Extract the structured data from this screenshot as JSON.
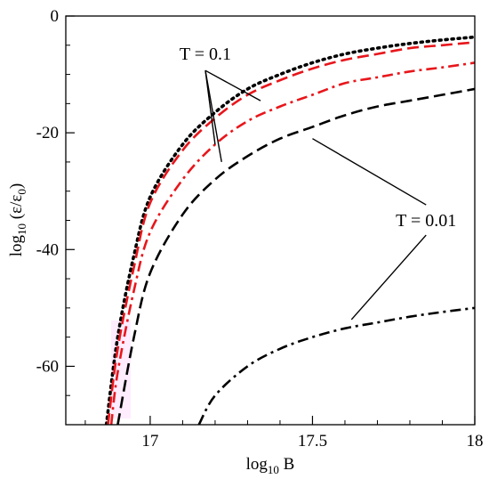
{
  "chart_data": {
    "type": "line",
    "xlabel": "log10 B",
    "ylabel": "log10 (ε/ε0)",
    "xlim": [
      16.74,
      18.0
    ],
    "ylim": [
      -70,
      0
    ],
    "x_ticks": [
      17,
      17.5,
      18
    ],
    "x_tick_labels": [
      "17",
      "17.5",
      "18"
    ],
    "y_ticks": [
      0,
      -20,
      -40,
      -60
    ],
    "y_tick_labels": [
      "0",
      "-20",
      "-40",
      "-60"
    ],
    "grid": false,
    "legend": "none",
    "series": [
      {
        "color": "#000000",
        "style": "dotted",
        "points": [
          [
            16.865,
            -70
          ],
          [
            16.9,
            -55
          ],
          [
            16.95,
            -41
          ],
          [
            17.0,
            -31
          ],
          [
            17.1,
            -22
          ],
          [
            17.2,
            -16.5
          ],
          [
            17.3,
            -12.5
          ],
          [
            17.4,
            -10
          ],
          [
            17.5,
            -8
          ],
          [
            17.6,
            -6.5
          ],
          [
            17.7,
            -5.5
          ],
          [
            17.8,
            -4.7
          ],
          [
            17.9,
            -4.1
          ],
          [
            18.0,
            -3.6
          ]
        ]
      },
      {
        "color": "#e8161b",
        "style": "long-dash",
        "points": [
          [
            16.87,
            -70
          ],
          [
            16.9,
            -57
          ],
          [
            16.95,
            -43
          ],
          [
            17.0,
            -32
          ],
          [
            17.1,
            -23
          ],
          [
            17.2,
            -17.5
          ],
          [
            17.3,
            -13.5
          ],
          [
            17.4,
            -11
          ],
          [
            17.5,
            -9
          ],
          [
            17.6,
            -7.5
          ],
          [
            17.7,
            -6.5
          ],
          [
            17.8,
            -5.5
          ],
          [
            17.9,
            -5
          ],
          [
            18.0,
            -4.5
          ]
        ]
      },
      {
        "color": "#e8161b",
        "style": "dash-dot",
        "points": [
          [
            16.88,
            -70
          ],
          [
            16.9,
            -61
          ],
          [
            16.95,
            -47
          ],
          [
            17.0,
            -37
          ],
          [
            17.1,
            -28
          ],
          [
            17.2,
            -22
          ],
          [
            17.3,
            -18
          ],
          [
            17.4,
            -15.5
          ],
          [
            17.5,
            -13.5
          ],
          [
            17.6,
            -11.5
          ],
          [
            17.7,
            -10.5
          ],
          [
            17.8,
            -9.5
          ],
          [
            17.9,
            -8.8
          ],
          [
            18.0,
            -8
          ]
        ]
      },
      {
        "color": "#000000",
        "style": "long-dash",
        "points": [
          [
            16.9,
            -70
          ],
          [
            16.95,
            -55
          ],
          [
            17.0,
            -44
          ],
          [
            17.1,
            -34
          ],
          [
            17.2,
            -28
          ],
          [
            17.3,
            -24
          ],
          [
            17.4,
            -21
          ],
          [
            17.5,
            -19
          ],
          [
            17.6,
            -17
          ],
          [
            17.7,
            -15.5
          ],
          [
            17.8,
            -14.5
          ],
          [
            17.9,
            -13.5
          ],
          [
            18.0,
            -12.5
          ]
        ]
      },
      {
        "color": "#000000",
        "style": "dash-dot",
        "points": [
          [
            17.15,
            -70
          ],
          [
            17.2,
            -65
          ],
          [
            17.3,
            -60
          ],
          [
            17.4,
            -57
          ],
          [
            17.5,
            -55
          ],
          [
            17.6,
            -53.5
          ],
          [
            17.7,
            -52.5
          ],
          [
            17.8,
            -51.5
          ],
          [
            17.9,
            -50.7
          ],
          [
            18.0,
            -50
          ]
        ]
      }
    ],
    "annotations": [
      {
        "text": "T = 0.1",
        "x": 17.17,
        "y": -7.5,
        "pointers": [
          [
            17.34,
            -14.5
          ],
          [
            17.2,
            -22
          ],
          [
            17.22,
            -25
          ]
        ]
      },
      {
        "text": "T = 0.01",
        "x": 17.85,
        "y": -36,
        "pointers": [
          [
            17.5,
            -21
          ],
          [
            17.62,
            -52
          ]
        ]
      }
    ]
  }
}
